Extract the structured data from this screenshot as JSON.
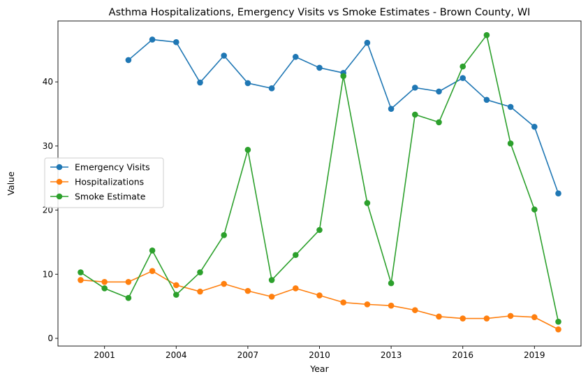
{
  "chart_data": {
    "type": "line",
    "title": "Asthma Hospitalizations, Emergency Visits vs Smoke Estimates - Brown County, WI",
    "xlabel": "Year",
    "ylabel": "Value",
    "x_ticks": [
      2001,
      2004,
      2007,
      2010,
      2013,
      2016,
      2019
    ],
    "y_ticks": [
      0,
      10,
      20,
      30,
      40
    ],
    "xlim": [
      1999.05,
      2020.95
    ],
    "ylim": [
      -1.2,
      49.5
    ],
    "grid": false,
    "legend_position": "center-left",
    "series": [
      {
        "name": "Emergency Visits",
        "color": "#1f77b4",
        "x": [
          2002,
          2003,
          2004,
          2005,
          2006,
          2007,
          2008,
          2009,
          2010,
          2011,
          2012,
          2013,
          2014,
          2015,
          2016,
          2017,
          2018,
          2019,
          2020
        ],
        "values": [
          43.4,
          46.6,
          46.2,
          39.9,
          44.1,
          39.8,
          39.0,
          43.9,
          42.2,
          41.4,
          46.1,
          35.8,
          39.1,
          38.5,
          40.6,
          37.2,
          36.1,
          33.0,
          22.6
        ]
      },
      {
        "name": "Hospitalizations",
        "color": "#ff7f0e",
        "x": [
          2000,
          2001,
          2002,
          2003,
          2004,
          2005,
          2006,
          2007,
          2008,
          2009,
          2010,
          2011,
          2012,
          2013,
          2014,
          2015,
          2016,
          2017,
          2018,
          2019,
          2020
        ],
        "values": [
          9.1,
          8.8,
          8.8,
          10.5,
          8.3,
          7.3,
          8.5,
          7.4,
          6.5,
          7.8,
          6.7,
          5.6,
          5.3,
          5.1,
          4.4,
          3.4,
          3.1,
          3.1,
          3.5,
          3.3,
          1.4
        ]
      },
      {
        "name": "Smoke Estimate",
        "color": "#2ca02c",
        "x": [
          2000,
          2001,
          2002,
          2003,
          2004,
          2005,
          2006,
          2007,
          2008,
          2009,
          2010,
          2011,
          2012,
          2013,
          2014,
          2015,
          2016,
          2017,
          2018,
          2019,
          2020
        ],
        "values": [
          10.3,
          7.8,
          6.3,
          13.7,
          6.8,
          10.3,
          16.1,
          29.4,
          9.1,
          13.0,
          16.9,
          40.9,
          21.1,
          8.6,
          34.9,
          33.7,
          42.4,
          47.3,
          30.4,
          20.1,
          2.6
        ]
      }
    ]
  }
}
